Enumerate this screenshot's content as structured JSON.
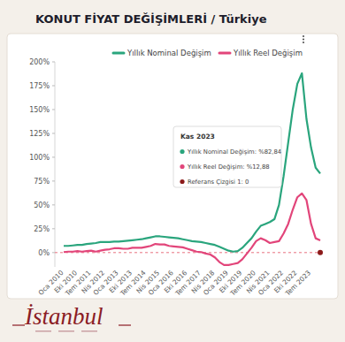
{
  "chart_data": {
    "type": "line",
    "title": "KONUT FİYAT DEĞİŞİMLERİ / Türkiye",
    "categories": [
      "Oca 2010",
      null,
      null,
      "Eki 2010",
      null,
      null,
      "Tem 2011",
      null,
      null,
      "Nis 2012",
      null,
      null,
      "Oca 2013",
      null,
      null,
      "Eki 2013",
      null,
      null,
      "Tem 2014",
      null,
      null,
      "Nis 2015",
      null,
      null,
      "Oca 2016",
      null,
      null,
      "Eki 2016",
      null,
      null,
      "Tem 2017",
      null,
      null,
      "Nis 2018",
      null,
      null,
      "Oca 2019",
      null,
      null,
      "Eki 2019",
      null,
      null,
      "Tem 2020",
      null,
      null,
      "Nis 2021",
      null,
      null,
      "Oca 2022",
      null,
      null,
      "Eki 2022",
      null,
      null,
      "Tem 2023",
      null,
      null
    ],
    "series": [
      {
        "name": "Yıllık Nominal Değişim",
        "color": "#2aa57d",
        "values": [
          7,
          7,
          7.5,
          8,
          8,
          9,
          9.5,
          10,
          11,
          11,
          11,
          11.5,
          11.5,
          12,
          12.5,
          13,
          13.5,
          14,
          15,
          16,
          17,
          17,
          16.5,
          16,
          15.5,
          15,
          14,
          13,
          12,
          11.5,
          11,
          10,
          9,
          8,
          6,
          4,
          2,
          1,
          1.5,
          5,
          10,
          15,
          22,
          28,
          30,
          32,
          35,
          50,
          80,
          115,
          150,
          177,
          188,
          140,
          110,
          89,
          82.84
        ]
      },
      {
        "name": "Yıllık Reel Değişim",
        "color": "#e2457a",
        "values": [
          0.5,
          1,
          1,
          1.5,
          1,
          1.5,
          2,
          1,
          2,
          3,
          3.5,
          4.5,
          4.5,
          4,
          4,
          5,
          5,
          5,
          6,
          7,
          9,
          8.5,
          8.5,
          7,
          6.5,
          6,
          5.5,
          4,
          2.5,
          1,
          0.5,
          -1,
          -2,
          -5,
          -10,
          -13,
          -13,
          -12,
          -11,
          -7,
          -1,
          5,
          12,
          15,
          13,
          10,
          11,
          12,
          20,
          30,
          45,
          58,
          62,
          55,
          30,
          15,
          12.88
        ]
      }
    ],
    "ylim": [
      -15,
      200
    ],
    "yticks": [
      {
        "value": 0,
        "label": "0%"
      },
      {
        "value": 25,
        "label": "25%"
      },
      {
        "value": 50,
        "label": "50%"
      },
      {
        "value": 75,
        "label": "75%"
      },
      {
        "value": 100,
        "label": "100%"
      },
      {
        "value": 125,
        "label": "125%"
      },
      {
        "value": 150,
        "label": "150%"
      },
      {
        "value": 175,
        "label": "175%"
      },
      {
        "value": 200,
        "label": "200%"
      }
    ],
    "grid": false,
    "legend": "top",
    "reference_line": 0,
    "tooltip": {
      "title": "Kas 2023",
      "rows": [
        {
          "label": "Yıllık Nominal Değişim: %82,84",
          "color": "#2aa57d"
        },
        {
          "label": "Yıllık Reel Değişim: %12,88",
          "color": "#e2457a"
        },
        {
          "label": "Referans Çizgisi 1: 0",
          "color": "#8b1a1a"
        }
      ]
    }
  },
  "logo": "İstanbul"
}
